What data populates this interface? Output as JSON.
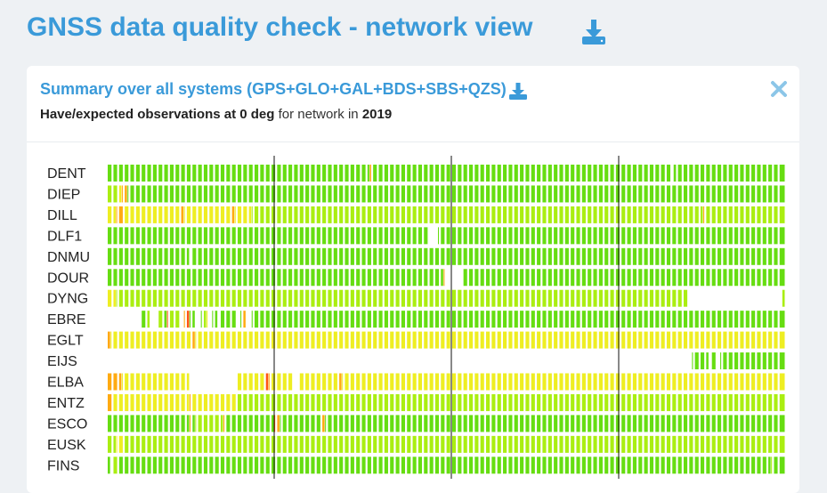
{
  "page_title": "GNSS data quality check - network view",
  "card": {
    "title": "Summary over all systems (GPS+GLO+GAL+BDS+SBS+QZS)",
    "subtitle": {
      "part1": "Have/expected observations at 0 deg",
      "part2": " for network in ",
      "year": "2019"
    }
  },
  "colors": {
    "title": "#3a9ad9",
    "good": "#66dd11",
    "medium": "#eeee22",
    "warn": "#ffaa11",
    "bad": "#ff5511"
  },
  "icons": {
    "download": "download-icon",
    "close": "close-icon"
  },
  "chart_data": {
    "type": "heatmap",
    "levels": "1=green high, 2=yellow-green, 3=yellow, 4=orange, 5=red, 0=no data",
    "stations": [
      "DENT",
      "DIEP",
      "DILL",
      "DLF1",
      "DNMU",
      "DOUR",
      "DYNG",
      "EBRE",
      "EGLT",
      "EIJS",
      "ELBA",
      "ENTZ",
      "ESCO",
      "EUSK",
      "FINS"
    ],
    "rows": [
      "111111111111111111111111111111111111111111111111111111111111111111111111111111111111111111111141111111111111111111111111111111111111111111111111111111111111111111111111111111111111111111111111111111111101111111111111111111111111111111111111111",
      "222234411111111111111111111111111111111111111111111111111111111111111111111111111111111111111111111111111111111111111111111111111111111111111111111111111111111111111111111111111111111111111111111111111111111111111111111111111111111111111111",
      "333444333333333333333333334333333333333333334333333222222222222222222222222222222222222222222222222222222222222222222222222222222222222222222222222222222222222222222222222222222222222222222222222222222222222222242222222222222222222222222222",
      "111111111111111111111111111111111111111111111111111111111111111111111111111111111111111111111111111111111111111111000111111111111111111111111111111111111111111111111111111111111111111111111111111111111111111111111111111111111111111111111111",
      "111111111111111111111111111110111111111111111111111111111111111111111111111111111111111111111111111111111111111111111111111111111111111111111111111111111111111111111111111111111111111111111111111111111111111111111111111111111111111111111111",
      "111111111111111111111111111111111111111111111111111111111111111111111111111111111111111111111111111111111111111111111114000000111111111111111111111111111111111111111111111111111111111111111111111111111111111111111111111111111111111111111111",
      "333222222222222222222222222222222222222222222222222222222222222222222222222222222222222222222222222222222222222222222222222222222222222222222222222222222222222222222222222222222222222222222222222222222222220000000000000000000000000000000002",
      "000000000000112000221522220451100123011011111101400111111111111111111111111111111111111111111111111111111111111111111111111111111111111111111111111111111111111111111111111111111111111111111111111111111111111111111111111111111111111111111111",
      "433333333333333333333333333333433333333333333333333333333333333333333333333333333333333333333333333333333333333333333333333333333333333333333333333333333333333333333333333333333333333333333333333333333333333333333333333333333333333333333333",
      "000000000000000000000000000000000000000000000000000000000000000000000000000000000000000000000000000000000000000000000000000000000000000000000000000000000000000000000000000000000000000000000000000000000000000111111011011111111111111111111111",
      "444443333333333333333333333330000000000000000033333333335433333333003333333333333343333333333333333333333333333333333333333333333333333333333333333333333333333333333333333333333333333333333333333333333333333333333333333333333333333333333333",
      "443333333333333333333333333334333333333333333322222222222222222222222222222222222222222222222222222222222222222222222222222222222222222222222222222222222222222222222222222222222222222222222222222222222222222222222222222222222222222222222222",
      "111111111111111111111111111114122222222224111111111111111115411111111111111141111111111111111111111111111111111111111111111111111111111111111111111111111111111111111111111111111111111111111111111111111111111111111111111111111111111111111111",
      "222333222222222222222222222222222222222222222222222222222222222222222222222222222222222222222222222222222222222222222222222222222222222222222222222222222222222222222222222222222222222222222222222222222222222222222222222222222222222222222222",
      "102211111111111111111111111111111111111111111111111111111111111111111111111111111111111111111111111111111111111111111111111111111111111111111111111111111111111111111111111111111111111111111111111111111111111111111111111111111111111111121111"
    ]
  }
}
